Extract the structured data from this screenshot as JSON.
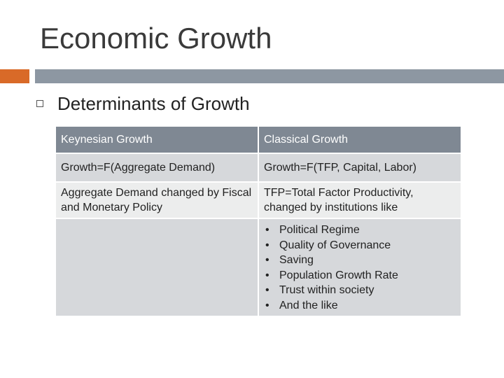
{
  "slide": {
    "title": "Economic Growth",
    "subheading": "Determinants of Growth",
    "accent_color": "#d96a28",
    "band_color": "#8d97a2"
  },
  "table": {
    "headers": [
      "Keynesian Growth",
      "Classical Growth"
    ],
    "rows": [
      [
        "Growth=F(Aggregate Demand)",
        "Growth=F(TFP, Capital, Labor)"
      ],
      [
        "Aggregate Demand changed by Fiscal and Monetary Policy",
        "TFP=Total Factor Productivity, changed by institutions like"
      ]
    ],
    "institutions": [
      "Political Regime",
      "Quality of Governance",
      "Saving",
      "Population Growth Rate",
      "Trust within society",
      "And the like"
    ]
  }
}
